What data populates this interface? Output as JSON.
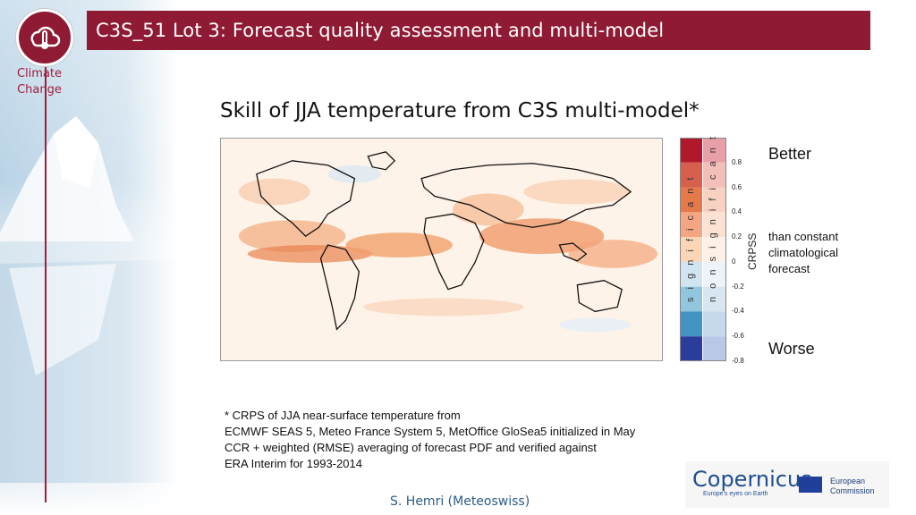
{
  "header": {
    "title": "C3S_51 Lot 3: Forecast quality assessment and multi-model",
    "logo_label": "Climate Change"
  },
  "slide": {
    "heading": "Skill of JJA temperature from C3S multi-model*"
  },
  "colorbar": {
    "ticks": [
      "0.8",
      "0.6",
      "0.4",
      "0.2",
      "0",
      "-0.2",
      "-0.4",
      "-0.6",
      "-0.8"
    ],
    "axis_label": "CRPSS",
    "column_labels": {
      "significant": "s i g n i f i c a n t",
      "non_significant": "n o n   s i g n i f i c a n t"
    },
    "colors_significant": [
      "#b2182b",
      "#d6604d",
      "#e6794a",
      "#f4a582",
      "#fbd6b6",
      "#d1e5f0",
      "#92c5de",
      "#4393c3",
      "#2a3d9a"
    ],
    "colors_non_significant": [
      "#e8a0a8",
      "#f2c0b8",
      "#f7d2c2",
      "#fbe2d2",
      "#fdf0e6",
      "#edf3f8",
      "#d8e6f1",
      "#c6d9ec",
      "#b9c8e6"
    ]
  },
  "legend": {
    "better": "Better",
    "than": "than constant climatological forecast",
    "worse": "Worse"
  },
  "footnote": {
    "lines": [
      "* CRPS of JJA near-surface temperature from",
      "ECMWF SEAS 5, Meteo France System 5, MetOffice GloSea5 initialized in May",
      "CCR + weighted (RMSE) averaging of forecast PDF and verified against",
      "ERA Interim for 1993-2014"
    ]
  },
  "logos": {
    "copernicus": "opernicus",
    "copernicus_letter": "C",
    "copernicus_tagline": "Europe's eyes on Earth",
    "ec_line1": "European",
    "ec_line2": "Commission"
  },
  "footer": {
    "author": "S. Hemri (Meteoswiss)"
  }
}
